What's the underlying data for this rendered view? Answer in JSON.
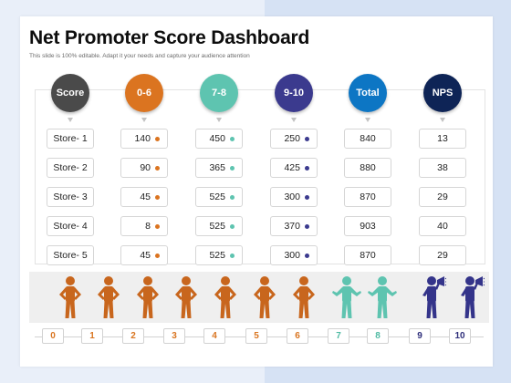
{
  "title": "Net Promoter Score Dashboard",
  "subtitle": "This slide is 100% editable. Adapt it your needs and capture your audience attention",
  "headers": [
    {
      "label": "Score",
      "color": "#4a4a4a"
    },
    {
      "label": "0-6",
      "color": "#db7420"
    },
    {
      "label": "7-8",
      "color": "#5ec4b0"
    },
    {
      "label": "9-10",
      "color": "#3b3a8e"
    },
    {
      "label": "Total",
      "color": "#0d76c4"
    },
    {
      "label": "NPS",
      "color": "#0e2456"
    }
  ],
  "rows": [
    {
      "store": "Store- 1",
      "detractors": "140",
      "passives": "450",
      "promoters": "250",
      "total": "840",
      "nps": "13"
    },
    {
      "store": "Store- 2",
      "detractors": "90",
      "passives": "365",
      "promoters": "425",
      "total": "880",
      "nps": "38"
    },
    {
      "store": "Store- 3",
      "detractors": "45",
      "passives": "525",
      "promoters": "300",
      "total": "870",
      "nps": "29"
    },
    {
      "store": "Store- 4",
      "detractors": "8",
      "passives": "525",
      "promoters": "370",
      "total": "903",
      "nps": "40"
    },
    {
      "store": "Store- 5",
      "detractors": "45",
      "passives": "525",
      "promoters": "300",
      "total": "870",
      "nps": "29"
    }
  ],
  "figures": [
    {
      "kind": "detractor-figure-icon",
      "color": "#c8661d"
    },
    {
      "kind": "detractor-figure-icon",
      "color": "#c8661d"
    },
    {
      "kind": "detractor-figure-icon",
      "color": "#c8661d"
    },
    {
      "kind": "detractor-figure-icon",
      "color": "#c8661d"
    },
    {
      "kind": "detractor-figure-icon",
      "color": "#c8661d"
    },
    {
      "kind": "detractor-figure-icon",
      "color": "#c8661d"
    },
    {
      "kind": "detractor-figure-icon",
      "color": "#c8661d"
    },
    {
      "kind": "passive-figure-icon",
      "color": "#5ec4b0"
    },
    {
      "kind": "passive-figure-icon",
      "color": "#5ec4b0"
    },
    {
      "kind": "promoter-megaphone-icon",
      "color": "#34348a"
    },
    {
      "kind": "promoter-megaphone-icon",
      "color": "#34348a"
    }
  ],
  "scale": [
    {
      "label": "0",
      "color": "#d9741f"
    },
    {
      "label": "1",
      "color": "#d9741f"
    },
    {
      "label": "2",
      "color": "#d9741f"
    },
    {
      "label": "3",
      "color": "#d9741f"
    },
    {
      "label": "4",
      "color": "#d9741f"
    },
    {
      "label": "5",
      "color": "#d9741f"
    },
    {
      "label": "6",
      "color": "#d9741f"
    },
    {
      "label": "7",
      "color": "#4fbaa3"
    },
    {
      "label": "8",
      "color": "#4fbaa3"
    },
    {
      "label": "9",
      "color": "#2e2e7a"
    },
    {
      "label": "10",
      "color": "#2e2e7a"
    }
  ]
}
